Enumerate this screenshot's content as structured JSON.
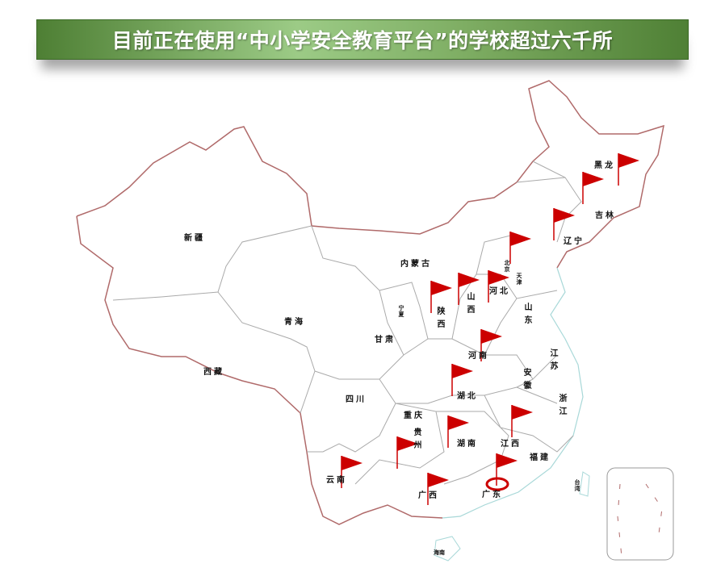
{
  "title": "目前正在使用“中小学安全教育平台”的学校超过六千所",
  "colors": {
    "title_bg": "#6f9f55",
    "border": "#b06a6a",
    "flag": "#cc0000"
  },
  "provinces": [
    {
      "id": "xinjiang",
      "name": "新疆"
    },
    {
      "id": "xizang",
      "name": "西藏"
    },
    {
      "id": "qinghai",
      "name": "青海"
    },
    {
      "id": "neimenggu",
      "name": "内蒙古"
    },
    {
      "id": "gansu",
      "name": "甘肃"
    },
    {
      "id": "ningxia",
      "name": "宁夏"
    },
    {
      "id": "shaanxi",
      "name": "陕西"
    },
    {
      "id": "shanxi",
      "name": "山西"
    },
    {
      "id": "hebei",
      "name": "河北"
    },
    {
      "id": "beijing",
      "name": "北京"
    },
    {
      "id": "tianjin",
      "name": "天津"
    },
    {
      "id": "shandong",
      "name": "山东"
    },
    {
      "id": "henan",
      "name": "河南"
    },
    {
      "id": "jiangsu",
      "name": "江苏"
    },
    {
      "id": "anhui",
      "name": "安徽"
    },
    {
      "id": "hubei",
      "name": "湖北"
    },
    {
      "id": "sichuan",
      "name": "四川"
    },
    {
      "id": "chongqing",
      "name": "重庆"
    },
    {
      "id": "zhejiang",
      "name": "浙江"
    },
    {
      "id": "guizhou",
      "name": "贵州"
    },
    {
      "id": "hunan",
      "name": "湖南"
    },
    {
      "id": "jiangxi",
      "name": "江西"
    },
    {
      "id": "fujian",
      "name": "福建"
    },
    {
      "id": "yunnan",
      "name": "云南"
    },
    {
      "id": "guangxi",
      "name": "广西"
    },
    {
      "id": "guangdong",
      "name": "广东"
    },
    {
      "id": "taiwan",
      "name": "台湾"
    },
    {
      "id": "hainan",
      "name": "海南"
    },
    {
      "id": "heilongjiang",
      "name": "黑龙"
    },
    {
      "id": "jilin",
      "name": "吉林"
    },
    {
      "id": "liaoning",
      "name": "辽宁"
    }
  ],
  "flags": [
    "heilongjiang",
    "jilin",
    "liaoning",
    "beijing",
    "shanxi",
    "hebei",
    "shaanxi",
    "henan",
    "hubei",
    "hunan",
    "jiangxi",
    "guizhou",
    "yunnan",
    "guangxi",
    "guangdong"
  ],
  "highlighted_flag": "guangdong"
}
